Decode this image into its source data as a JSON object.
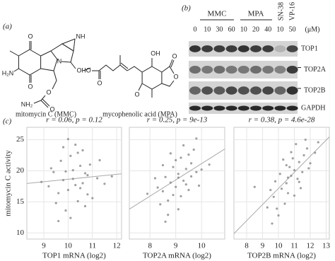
{
  "panel_a": {
    "label": "(a)",
    "mmc_name": "mitomycin C (MMC)",
    "mpa_name": "mycophenolic acid (MPA)",
    "mmc_atoms": [
      "O",
      "O",
      "H₂N",
      "N",
      "NH",
      "O",
      "O",
      "O",
      "NH₂"
    ],
    "mpa_atoms": [
      "HO",
      "O",
      "OH",
      "O",
      "O",
      "O"
    ]
  },
  "panel_b": {
    "label": "(b)",
    "groups": [
      "MMC",
      "MPA",
      "SN-38",
      "VP-16"
    ],
    "lanes": [
      "0",
      "10",
      "30",
      "60",
      "10",
      "20",
      "40",
      "10",
      "50"
    ],
    "unit": "(μM)",
    "rows": [
      "TOP1",
      "TOP2A",
      "TOP2B",
      "GAPDH"
    ]
  },
  "panel_c": {
    "label": "(c)"
  },
  "chart_data": [
    {
      "type": "scatter",
      "title": "r = 0.06, p = 0.12",
      "xlabel": "TOP1 mRNA (log2)",
      "ylabel": "mitomycin C activity",
      "color": "#888888",
      "grid": true,
      "xlim": [
        8.3,
        12.2
      ],
      "xticks": [
        9,
        10,
        11,
        12
      ],
      "ylim": [
        9,
        27
      ],
      "yticks": [
        10,
        15,
        20,
        25
      ],
      "x": [
        9.8,
        10.2,
        10.5,
        9.6,
        10.8,
        10.1,
        9.4,
        10.4,
        10.9,
        9.9,
        10.6,
        10.3,
        9.2,
        11.2,
        10.0,
        10.7,
        9.7,
        10.5,
        11.5,
        9.5,
        10.2,
        10.8,
        9.9,
        10.4,
        8.9,
        11.8,
        10.1,
        10.6,
        9.3,
        11.0,
        10.3,
        9.8,
        10.7,
        10.0,
        11.3,
        9.6
      ],
      "values": [
        18.5,
        20.1,
        17.2,
        16.4,
        19.3,
        22.4,
        19.8,
        15.1,
        21.0,
        13.6,
        18.0,
        24.2,
        17.5,
        18.8,
        16.9,
        14.3,
        21.6,
        20.8,
        17.9,
        14.8,
        18.7,
        16.2,
        19.9,
        22.9,
        18.2,
        19.1,
        12.4,
        23.3,
        20.4,
        15.6,
        17.7,
        23.8,
        19.6,
        25.1,
        21.7,
        11.9
      ]
    },
    {
      "type": "scatter",
      "title": "r = 0.25, p = 9e-13",
      "xlabel": "TOP2A mRNA (log2)",
      "color": "#888888",
      "grid": true,
      "xlim": [
        7.2,
        10.9
      ],
      "xticks": [
        8,
        9,
        10
      ],
      "ylim": [
        9,
        27
      ],
      "x": [
        8.8,
        9.1,
        9.4,
        8.5,
        9.0,
        9.6,
        8.7,
        9.2,
        9.8,
        8.3,
        9.3,
        8.9,
        9.5,
        8.6,
        9.1,
        9.7,
        8.4,
        9.0,
        9.4,
        8.8,
        10.0,
        8.2,
        9.2,
        9.6,
        8.7,
        9.3,
        8.9,
        9.9,
        8.5,
        9.5,
        10.3,
        7.9,
        9.1,
        9.8,
        8.6
      ],
      "values": [
        18.1,
        19.5,
        20.3,
        16.7,
        17.4,
        21.2,
        15.2,
        22.1,
        19.8,
        17.3,
        18.4,
        20.6,
        16.9,
        19.0,
        13.8,
        23.4,
        14.6,
        21.7,
        17.8,
        22.8,
        20.2,
        18.8,
        15.9,
        19.1,
        12.9,
        24.1,
        16.1,
        17.6,
        20.9,
        22.6,
        21.0,
        16.3,
        18.9,
        25.2,
        11.8
      ]
    },
    {
      "type": "scatter",
      "title": "r = 0.38, p = 4.6e-28",
      "xlabel": "TOP2B mRNA (log2)",
      "color": "#888888",
      "grid": true,
      "xlim": [
        7.2,
        13.2
      ],
      "xticks": [
        8,
        9,
        10,
        11,
        12,
        13
      ],
      "ylim": [
        9,
        27
      ],
      "x": [
        10.2,
        10.8,
        11.3,
        9.7,
        10.5,
        11.0,
        11.6,
        9.9,
        10.6,
        11.2,
        11.8,
        10.1,
        10.9,
        11.5,
        9.5,
        10.4,
        11.1,
        12.0,
        10.7,
        9.8,
        11.4,
        10.3,
        11.7,
        10.0,
        12.3,
        10.6,
        11.0,
        9.3,
        11.9,
        10.8,
        8.5,
        12.5,
        10.5,
        11.3,
        9.6
      ],
      "values": [
        17.1,
        19.2,
        21.4,
        15.8,
        18.0,
        20.1,
        22.5,
        13.9,
        16.4,
        18.7,
        23.6,
        19.5,
        22.0,
        19.8,
        16.9,
        14.7,
        24.3,
        21.2,
        20.6,
        18.3,
        17.2,
        21.8,
        25.0,
        12.8,
        22.9,
        18.9,
        16.0,
        14.1,
        20.4,
        23.0,
        17.4,
        24.6,
        20.9,
        18.2,
        11.5
      ]
    }
  ]
}
